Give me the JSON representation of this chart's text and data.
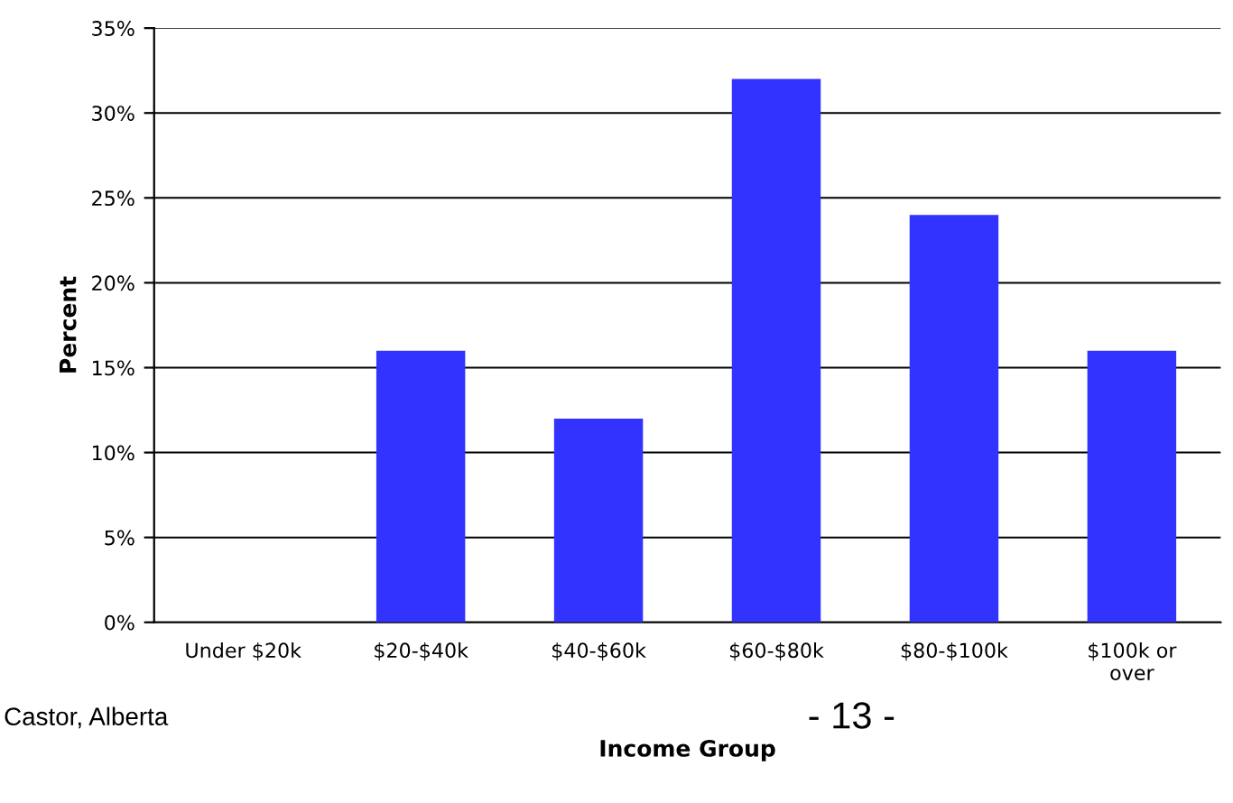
{
  "chart_data": {
    "type": "bar",
    "xlabel": "Income Group",
    "ylabel": "Percent",
    "categories": [
      "Under $20k",
      "$20-$40k",
      "$40-$60k",
      "$60-$80k",
      "$80-$100k",
      "$100k or\nover"
    ],
    "values": [
      0,
      16,
      12,
      32,
      24,
      16
    ],
    "color": "#3333ff",
    "ylim": [
      0,
      35
    ],
    "yticks": [
      {
        "value": 0,
        "label": "0%"
      },
      {
        "value": 5,
        "label": "5%"
      },
      {
        "value": 10,
        "label": "10%"
      },
      {
        "value": 15,
        "label": "15%"
      },
      {
        "value": 20,
        "label": "20%"
      },
      {
        "value": 25,
        "label": "25%"
      },
      {
        "value": 30,
        "label": "30%"
      },
      {
        "value": 35,
        "label": "35%"
      }
    ],
    "grid": "y",
    "annotations": [
      "Castor, Alberta",
      "- 13 -"
    ]
  }
}
